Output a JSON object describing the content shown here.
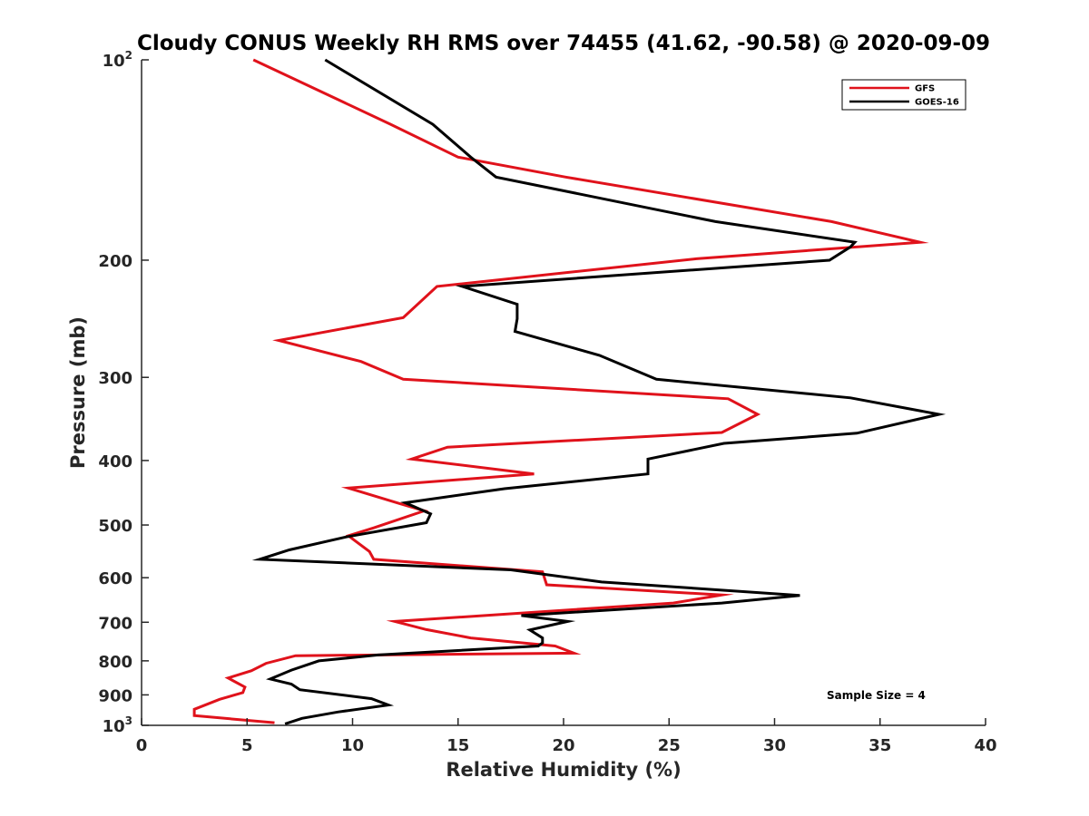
{
  "chart_data": {
    "type": "line",
    "title": "Cloudy CONUS Weekly RH RMS over 74455 (41.62, -90.58) @ 2020-09-09",
    "xlabel": "Relative Humidity (%)",
    "ylabel": "Pressure (mb)",
    "xlim": [
      0,
      40
    ],
    "ylim": [
      100,
      1000
    ],
    "y_scale": "log",
    "y_reversed": true,
    "x_ticks": [
      "0",
      "5",
      "10",
      "15",
      "20",
      "25",
      "30",
      "35",
      "40"
    ],
    "y_ticks": [
      {
        "value": 100,
        "label": "10",
        "exp": "2"
      },
      {
        "value": 200,
        "label": "200"
      },
      {
        "value": 300,
        "label": "300"
      },
      {
        "value": 400,
        "label": "400"
      },
      {
        "value": 500,
        "label": "500"
      },
      {
        "value": 600,
        "label": "600"
      },
      {
        "value": 700,
        "label": "700"
      },
      {
        "value": 800,
        "label": "800"
      },
      {
        "value": 900,
        "label": "900"
      },
      {
        "value": 1000,
        "label": "10",
        "exp": "3"
      }
    ],
    "grid": false,
    "legend_position": "top-right",
    "annotation": "Sample Size = 4",
    "series": [
      {
        "name": "GFS",
        "color": "#e0121b",
        "points": [
          [
            5.3,
            100
          ],
          [
            11.8,
            125
          ],
          [
            15.0,
            140
          ],
          [
            20.1,
            150
          ],
          [
            32.7,
            175
          ],
          [
            36.9,
            188
          ],
          [
            26.3,
            199
          ],
          [
            14.0,
            219
          ],
          [
            12.4,
            244
          ],
          [
            6.5,
            264
          ],
          [
            10.4,
            284
          ],
          [
            12.4,
            302
          ],
          [
            27.8,
            323
          ],
          [
            29.2,
            341
          ],
          [
            27.5,
            363
          ],
          [
            14.5,
            382
          ],
          [
            12.8,
            398
          ],
          [
            18.6,
            419
          ],
          [
            9.8,
            440
          ],
          [
            12.2,
            464
          ],
          [
            13.4,
            476
          ],
          [
            11.0,
            505
          ],
          [
            9.8,
            519
          ],
          [
            10.8,
            548
          ],
          [
            11.0,
            563
          ],
          [
            19.0,
            588
          ],
          [
            19.2,
            615
          ],
          [
            27.5,
            637
          ],
          [
            25.2,
            655
          ],
          [
            12.0,
            698
          ],
          [
            13.5,
            718
          ],
          [
            15.6,
            739
          ],
          [
            19.6,
            760
          ],
          [
            20.5,
            779
          ],
          [
            7.3,
            786
          ],
          [
            5.9,
            807
          ],
          [
            5.2,
            828
          ],
          [
            4.1,
            849
          ],
          [
            4.9,
            876
          ],
          [
            4.8,
            893
          ],
          [
            3.7,
            914
          ],
          [
            2.5,
            946
          ],
          [
            2.5,
            967
          ],
          [
            6.3,
            991
          ]
        ]
      },
      {
        "name": "GOES-16",
        "color": "#000000",
        "points": [
          [
            8.7,
            100
          ],
          [
            13.8,
            125
          ],
          [
            15.6,
            140
          ],
          [
            16.8,
            150
          ],
          [
            27.2,
            175
          ],
          [
            33.8,
            188
          ],
          [
            33.6,
            191
          ],
          [
            32.6,
            200
          ],
          [
            15.2,
            219
          ],
          [
            17.8,
            233
          ],
          [
            17.8,
            245
          ],
          [
            17.7,
            256
          ],
          [
            21.7,
            278
          ],
          [
            24.4,
            302
          ],
          [
            33.6,
            322
          ],
          [
            37.8,
            341
          ],
          [
            33.9,
            364
          ],
          [
            27.6,
            377
          ],
          [
            24.0,
            398
          ],
          [
            24.0,
            419
          ],
          [
            17.2,
            441
          ],
          [
            12.5,
            463
          ],
          [
            13.7,
            481
          ],
          [
            13.5,
            496
          ],
          [
            9.7,
            521
          ],
          [
            7.0,
            545
          ],
          [
            5.6,
            563
          ],
          [
            17.5,
            584
          ],
          [
            21.8,
            609
          ],
          [
            31.2,
            638
          ],
          [
            27.5,
            655
          ],
          [
            18.0,
            684
          ],
          [
            20.2,
            698
          ],
          [
            18.4,
            719
          ],
          [
            19.0,
            739
          ],
          [
            19.0,
            752
          ],
          [
            18.8,
            760
          ],
          [
            11.2,
            784
          ],
          [
            8.4,
            800
          ],
          [
            7.1,
            826
          ],
          [
            6.1,
            852
          ],
          [
            7.1,
            867
          ],
          [
            7.5,
            884
          ],
          [
            10.9,
            912
          ],
          [
            11.7,
            932
          ],
          [
            9.3,
            955
          ],
          [
            7.6,
            976
          ],
          [
            6.8,
            995
          ]
        ]
      }
    ]
  }
}
